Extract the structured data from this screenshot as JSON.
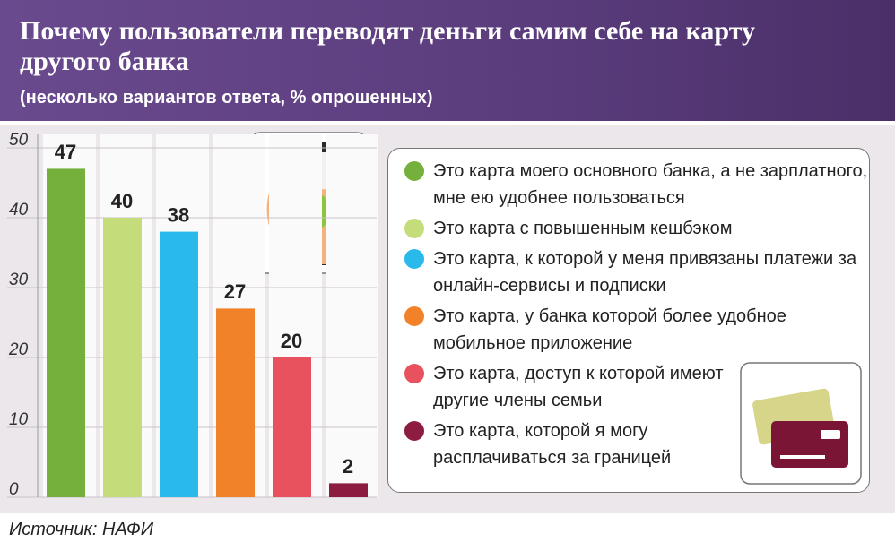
{
  "chart_data": {
    "type": "bar",
    "title": "Почему пользователи переводят деньги самим себе на карту другого банка",
    "subtitle": "(несколько вариантов ответа, % опрошенных)",
    "source": "Источник: НАФИ",
    "categories": [
      "Это карта моего основного банка, а не зарплатного, мне ею удобнее пользоваться",
      "Это карта с повышенным кешбэком",
      "Это карта, к которой у меня привязаны платежи за онлайн-сервисы и подписки",
      "Это карта, у банка которой более удобное мобильное приложение",
      "Это карта, доступ к которой имеют другие члены семьи",
      "Это карта, которой я могу расплачиваться за границей"
    ],
    "values": [
      47,
      40,
      38,
      27,
      20,
      2
    ],
    "colors": [
      "#76b03c",
      "#c5dc7a",
      "#29b9ea",
      "#f2822a",
      "#e8525e",
      "#8c1d40"
    ],
    "ylim": [
      0,
      50
    ],
    "yticks": [
      0,
      10,
      20,
      30,
      40,
      50
    ],
    "grid": true
  }
}
